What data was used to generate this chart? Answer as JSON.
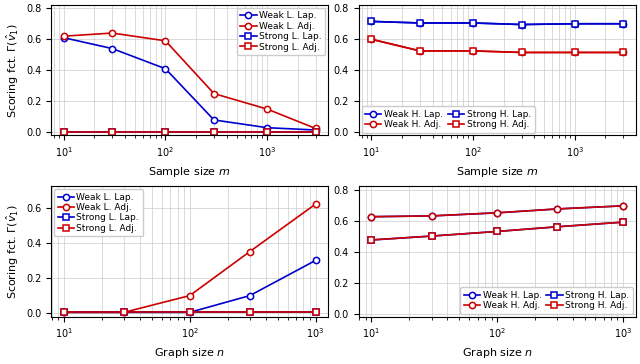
{
  "m_values": [
    10,
    30,
    100,
    300,
    1000,
    3000
  ],
  "n_values": [
    10,
    30,
    100,
    300,
    1000
  ],
  "top_left": {
    "weak_lap": [
      0.61,
      0.54,
      0.41,
      0.08,
      0.03,
      0.015
    ],
    "weak_adj": [
      0.62,
      0.64,
      0.59,
      0.25,
      0.15,
      0.025
    ],
    "strong_lap": [
      0.005,
      0.005,
      0.005,
      0.005,
      0.005,
      0.005
    ],
    "strong_adj": [
      0.005,
      0.005,
      0.005,
      0.005,
      0.005,
      0.005
    ],
    "ylabel": "Scoring fct. $\\Gamma(\\hat{v}_1)$",
    "xlabel": "Sample size $m$",
    "ylim": [
      -0.02,
      0.82
    ],
    "yticks": [
      0,
      0.2,
      0.4,
      0.6,
      0.8
    ],
    "legend_loc": "upper right",
    "legend_ncol": 1
  },
  "top_right": {
    "weak_lap": [
      0.715,
      0.705,
      0.705,
      0.695,
      0.7,
      0.7
    ],
    "weak_adj": [
      0.6,
      0.525,
      0.525,
      0.515,
      0.515,
      0.515
    ],
    "strong_lap": [
      0.715,
      0.705,
      0.705,
      0.695,
      0.7,
      0.7
    ],
    "strong_adj": [
      0.6,
      0.525,
      0.525,
      0.515,
      0.515,
      0.515
    ],
    "ylabel": "",
    "xlabel": "Sample size $m$",
    "ylim": [
      -0.02,
      0.82
    ],
    "yticks": [
      0,
      0.2,
      0.4,
      0.6,
      0.8
    ],
    "legend_loc": "lower left",
    "legend_ncol": 2
  },
  "bottom_left": {
    "weak_lap": [
      0.005,
      0.005,
      0.005,
      0.1,
      0.3
    ],
    "weak_adj": [
      0.005,
      0.005,
      0.1,
      0.35,
      0.62
    ],
    "strong_lap": [
      0.005,
      0.005,
      0.005,
      0.005,
      0.005
    ],
    "strong_adj": [
      0.005,
      0.005,
      0.005,
      0.005,
      0.005
    ],
    "ylabel": "Scoring fct. $\\Gamma(\\hat{v}_1)$",
    "xlabel": "Graph size $n$",
    "ylim": [
      -0.02,
      0.72
    ],
    "yticks": [
      0,
      0.2,
      0.4,
      0.6
    ],
    "legend_loc": "upper left",
    "legend_ncol": 1
  },
  "bottom_right": {
    "weak_lap": [
      0.625,
      0.63,
      0.65,
      0.675,
      0.695
    ],
    "weak_adj": [
      0.625,
      0.63,
      0.65,
      0.675,
      0.695
    ],
    "strong_lap": [
      0.475,
      0.5,
      0.53,
      0.56,
      0.59
    ],
    "strong_adj": [
      0.475,
      0.5,
      0.53,
      0.56,
      0.59
    ],
    "ylabel": "",
    "xlabel": "Graph size $n$",
    "ylim": [
      -0.02,
      0.82
    ],
    "yticks": [
      0,
      0.2,
      0.4,
      0.6,
      0.8
    ],
    "legend_loc": "lower right",
    "legend_ncol": 2
  },
  "legend_top_left": [
    "Weak L. Lap.",
    "Weak L. Adj.",
    "Strong L. Lap.",
    "Strong L. Adj."
  ],
  "legend_top_right": [
    "Weak H. Lap.",
    "Weak H. Adj.",
    "Strong H. Lap.",
    "Strong H. Adj."
  ],
  "legend_bottom_left": [
    "Weak L. Lap.",
    "Weak L. Adj.",
    "Strong L. Lap.",
    "Strong L. Adj."
  ],
  "legend_bottom_right": [
    "Weak H. Lap.",
    "Weak H. Adj.",
    "Strong H. Lap.",
    "Strong H. Adj."
  ],
  "blue": "#0000cc",
  "red": "#cc0000",
  "marker_size": 4.5,
  "linewidth": 1.2,
  "fontsize_label": 8,
  "fontsize_tick": 7,
  "fontsize_legend": 6.5
}
